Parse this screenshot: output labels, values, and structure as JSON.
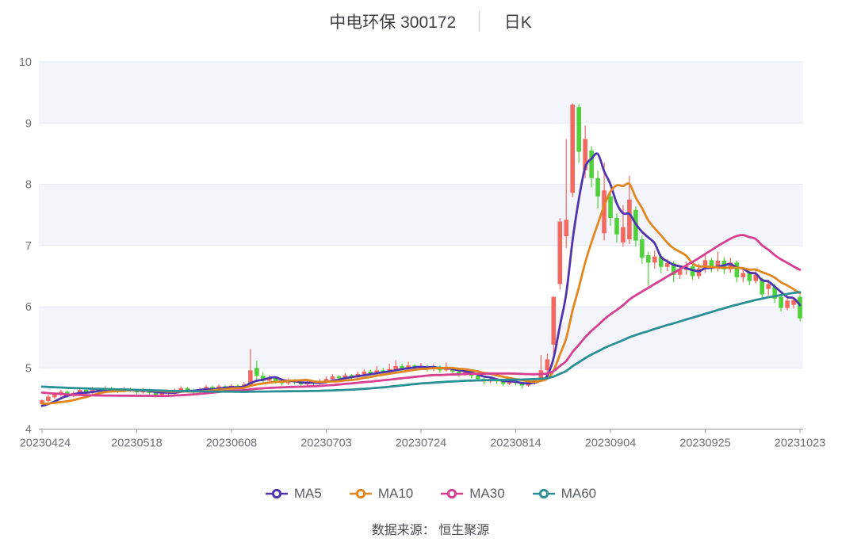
{
  "title": {
    "stock_title": "中电环保 300172",
    "separator": "│",
    "period": "日K"
  },
  "footer": {
    "text": "数据来源： 恒生聚源"
  },
  "legend": {
    "items": [
      {
        "label": "MA5",
        "color": "#4f35ad"
      },
      {
        "label": "MA10",
        "color": "#e2861e"
      },
      {
        "label": "MA30",
        "color": "#d63f92"
      },
      {
        "label": "MA60",
        "color": "#2b8f96"
      }
    ]
  },
  "chart_data": {
    "type": "candlestick",
    "title": "中电环保 300172 日K",
    "x_tick_labels": [
      "20230424",
      "20230518",
      "20230608",
      "20230703",
      "20230724",
      "20230814",
      "20230904",
      "20230925",
      "20231023"
    ],
    "x_label_indices": [
      0,
      15,
      30,
      45,
      60,
      75,
      90,
      105,
      120
    ],
    "num_points": 121,
    "y_ticks": [
      4,
      5,
      6,
      7,
      8,
      9,
      10
    ],
    "ylim": [
      4,
      10
    ],
    "grid": true,
    "legend_position": "bottom",
    "ohlc_columns": [
      "open",
      "close",
      "low",
      "high"
    ],
    "candles": [
      [
        4.41,
        4.47,
        4.36,
        4.49
      ],
      [
        4.46,
        4.53,
        4.44,
        4.56
      ],
      [
        4.52,
        4.57,
        4.49,
        4.6
      ],
      [
        4.56,
        4.61,
        4.53,
        4.64
      ],
      [
        4.61,
        4.54,
        4.51,
        4.63
      ],
      [
        4.54,
        4.59,
        4.52,
        4.62
      ],
      [
        4.59,
        4.64,
        4.56,
        4.68
      ],
      [
        4.64,
        4.6,
        4.57,
        4.66
      ],
      [
        4.6,
        4.66,
        4.58,
        4.69
      ],
      [
        4.66,
        4.63,
        4.6,
        4.68
      ],
      [
        4.63,
        4.67,
        4.61,
        4.7
      ],
      [
        4.67,
        4.64,
        4.61,
        4.69
      ],
      [
        4.64,
        4.62,
        4.59,
        4.66
      ],
      [
        4.62,
        4.66,
        4.6,
        4.69
      ],
      [
        4.66,
        4.63,
        4.61,
        4.68
      ],
      [
        4.63,
        4.6,
        4.56,
        4.65
      ],
      [
        4.6,
        4.64,
        4.58,
        4.67
      ],
      [
        4.64,
        4.59,
        4.55,
        4.66
      ],
      [
        4.59,
        4.56,
        4.52,
        4.61
      ],
      [
        4.56,
        4.61,
        4.54,
        4.64
      ],
      [
        4.61,
        4.58,
        4.54,
        4.63
      ],
      [
        4.58,
        4.63,
        4.56,
        4.66
      ],
      [
        4.63,
        4.67,
        4.6,
        4.7
      ],
      [
        4.67,
        4.64,
        4.61,
        4.69
      ],
      [
        4.64,
        4.61,
        4.58,
        4.66
      ],
      [
        4.61,
        4.65,
        4.59,
        4.68
      ],
      [
        4.65,
        4.69,
        4.62,
        4.72
      ],
      [
        4.69,
        4.66,
        4.63,
        4.71
      ],
      [
        4.66,
        4.7,
        4.64,
        4.73
      ],
      [
        4.7,
        4.67,
        4.64,
        4.72
      ],
      [
        4.67,
        4.71,
        4.65,
        4.74
      ],
      [
        4.71,
        4.68,
        4.65,
        4.73
      ],
      [
        4.68,
        4.73,
        4.66,
        4.77
      ],
      [
        4.73,
        4.96,
        4.7,
        5.31
      ],
      [
        5.0,
        4.87,
        4.8,
        5.12
      ],
      [
        4.87,
        4.79,
        4.74,
        4.93
      ],
      [
        4.79,
        4.83,
        4.76,
        4.88
      ],
      [
        4.83,
        4.78,
        4.74,
        4.86
      ],
      [
        4.78,
        4.75,
        4.71,
        4.81
      ],
      [
        4.75,
        4.79,
        4.72,
        4.83
      ],
      [
        4.79,
        4.76,
        4.73,
        4.82
      ],
      [
        4.76,
        4.73,
        4.7,
        4.78
      ],
      [
        4.73,
        4.77,
        4.71,
        4.8
      ],
      [
        4.77,
        4.74,
        4.71,
        4.79
      ],
      [
        4.74,
        4.78,
        4.72,
        4.82
      ],
      [
        4.78,
        4.82,
        4.75,
        4.86
      ],
      [
        4.82,
        4.86,
        4.79,
        4.9
      ],
      [
        4.86,
        4.83,
        4.8,
        4.88
      ],
      [
        4.83,
        4.88,
        4.81,
        4.92
      ],
      [
        4.88,
        4.85,
        4.82,
        4.9
      ],
      [
        4.85,
        4.9,
        4.83,
        4.94
      ],
      [
        4.9,
        4.94,
        4.87,
        4.98
      ],
      [
        4.94,
        4.91,
        4.87,
        4.97
      ],
      [
        4.91,
        4.96,
        4.89,
        5.03
      ],
      [
        4.96,
        4.93,
        4.89,
        5.0
      ],
      [
        4.93,
        4.98,
        4.91,
        5.07
      ],
      [
        4.98,
        5.03,
        4.95,
        5.13
      ],
      [
        5.03,
        4.99,
        4.95,
        5.07
      ],
      [
        4.99,
        5.04,
        4.97,
        5.1
      ],
      [
        5.04,
        5.0,
        4.96,
        5.06
      ],
      [
        5.0,
        5.03,
        4.97,
        5.08
      ],
      [
        5.03,
        4.98,
        4.94,
        5.05
      ],
      [
        4.98,
        5.02,
        4.95,
        5.06
      ],
      [
        5.02,
        4.96,
        4.92,
        5.04
      ],
      [
        4.96,
        5.0,
        4.94,
        5.09
      ],
      [
        5.0,
        4.94,
        4.9,
        5.02
      ],
      [
        4.94,
        4.89,
        4.85,
        4.96
      ],
      [
        4.89,
        4.93,
        4.87,
        4.97
      ],
      [
        4.93,
        4.87,
        4.83,
        4.94
      ],
      [
        4.87,
        4.82,
        4.78,
        4.89
      ],
      [
        4.82,
        4.78,
        4.73,
        4.84
      ],
      [
        4.78,
        4.82,
        4.75,
        4.86
      ],
      [
        4.82,
        4.78,
        4.74,
        4.83
      ],
      [
        4.78,
        4.74,
        4.7,
        4.79
      ],
      [
        4.74,
        4.78,
        4.72,
        4.82
      ],
      [
        4.78,
        4.75,
        4.71,
        4.81
      ],
      [
        4.75,
        4.71,
        4.66,
        4.77
      ],
      [
        4.71,
        4.76,
        4.69,
        4.8
      ],
      [
        4.76,
        4.8,
        4.73,
        4.83
      ],
      [
        4.8,
        4.96,
        4.78,
        5.21
      ],
      [
        4.96,
        5.14,
        4.91,
        5.23
      ],
      [
        5.38,
        6.16,
        5.16,
        6.17
      ],
      [
        6.37,
        7.39,
        6.28,
        7.45
      ],
      [
        7.15,
        7.42,
        6.96,
        8.74
      ],
      [
        7.86,
        9.3,
        7.79,
        9.32
      ],
      [
        9.26,
        8.53,
        8.35,
        9.31
      ],
      [
        8.23,
        8.74,
        8.1,
        8.96
      ],
      [
        8.55,
        8.1,
        7.95,
        8.62
      ],
      [
        8.1,
        7.8,
        7.6,
        8.22
      ],
      [
        7.2,
        7.9,
        7.08,
        8.35
      ],
      [
        7.8,
        7.45,
        7.32,
        7.88
      ],
      [
        7.45,
        7.18,
        7.05,
        7.52
      ],
      [
        7.05,
        7.3,
        6.98,
        7.66
      ],
      [
        7.1,
        7.75,
        7.02,
        8.14
      ],
      [
        7.58,
        7.08,
        6.98,
        7.64
      ],
      [
        7.1,
        6.8,
        6.7,
        7.16
      ],
      [
        6.84,
        6.72,
        6.34,
        6.9
      ],
      [
        6.72,
        6.82,
        6.62,
        6.92
      ],
      [
        6.82,
        6.65,
        6.55,
        6.86
      ],
      [
        6.65,
        6.71,
        6.58,
        6.78
      ],
      [
        6.71,
        6.52,
        6.4,
        6.74
      ],
      [
        6.52,
        6.6,
        6.45,
        6.68
      ],
      [
        6.6,
        6.66,
        6.52,
        6.74
      ],
      [
        6.66,
        6.5,
        6.44,
        6.7
      ],
      [
        6.5,
        6.62,
        6.45,
        6.7
      ],
      [
        6.62,
        6.76,
        6.55,
        6.85
      ],
      [
        6.76,
        6.64,
        6.56,
        6.8
      ],
      [
        6.64,
        6.75,
        6.58,
        6.9
      ],
      [
        6.75,
        6.61,
        6.54,
        6.81
      ],
      [
        6.61,
        6.72,
        6.55,
        6.8
      ],
      [
        6.72,
        6.48,
        6.4,
        6.75
      ],
      [
        6.48,
        6.55,
        6.4,
        6.62
      ],
      [
        6.55,
        6.42,
        6.35,
        6.58
      ],
      [
        6.42,
        6.52,
        6.38,
        6.6
      ],
      [
        6.45,
        6.2,
        6.12,
        6.48
      ],
      [
        6.29,
        6.37,
        6.18,
        6.44
      ],
      [
        6.33,
        6.13,
        6.06,
        6.38
      ],
      [
        6.16,
        5.98,
        5.92,
        6.21
      ],
      [
        5.98,
        6.1,
        5.94,
        6.17
      ],
      [
        6.03,
        6.11,
        5.97,
        6.15
      ],
      [
        6.16,
        5.81,
        5.76,
        6.19
      ]
    ],
    "ma_windows": [
      5,
      10,
      30,
      60
    ],
    "ma_seed_closes": [
      4.86,
      4.86,
      4.85,
      4.85,
      4.84,
      4.84,
      4.83,
      4.83,
      4.82,
      4.82,
      4.81,
      4.81,
      4.8,
      4.8,
      4.79,
      4.79,
      4.78,
      4.78,
      4.77,
      4.77,
      4.76,
      4.76,
      4.75,
      4.75,
      4.74,
      4.74,
      4.74,
      4.74,
      4.74,
      4.74,
      4.8,
      4.79,
      4.78,
      4.77,
      4.75,
      4.74,
      4.73,
      4.72,
      4.7,
      4.69,
      4.68,
      4.67,
      4.66,
      4.65,
      4.64,
      4.63,
      4.62,
      4.61,
      4.6,
      4.52,
      4.5,
      4.48,
      4.45,
      4.42,
      4.4,
      4.38,
      4.36,
      4.35,
      4.34
    ],
    "colors": {
      "up": "#f4685f",
      "down": "#4ed139",
      "ma5": "#4f35ad",
      "ma10": "#e2861e",
      "ma30": "#d63f92",
      "ma60": "#2b8f96",
      "grid_line": "#e6e9f2",
      "band_fill": "#f3f5fa",
      "axis_line": "#979ca5",
      "axis_text": "#6e7079"
    }
  }
}
